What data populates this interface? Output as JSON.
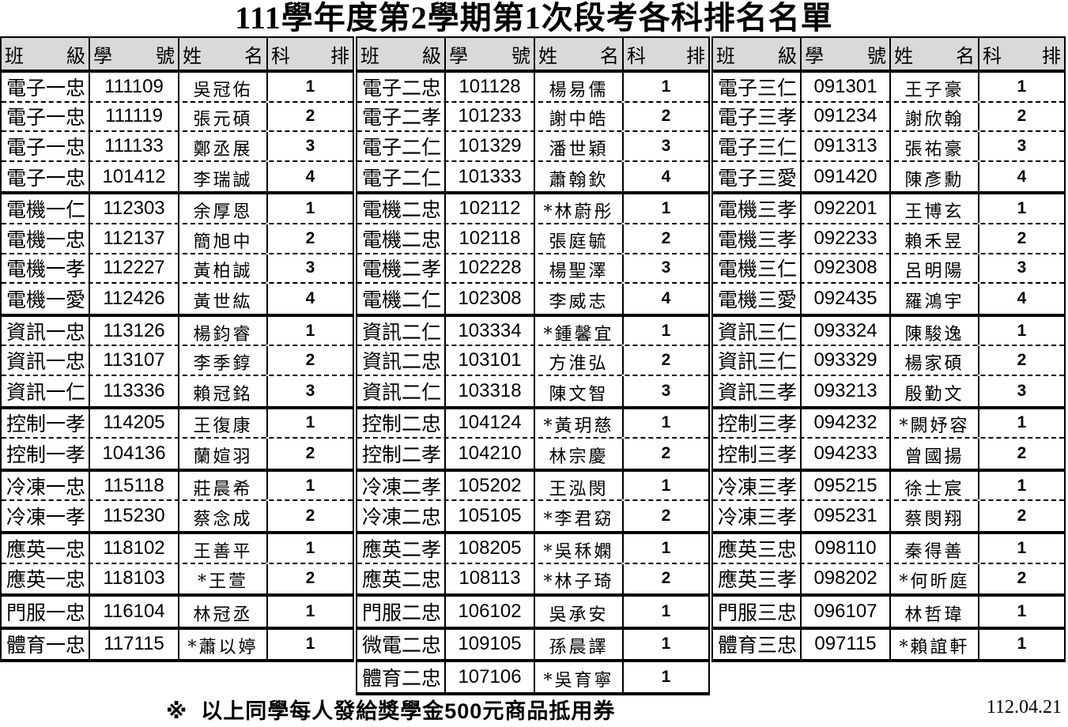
{
  "title": "111學年度第2學期第1次段考各科排名名單",
  "headers": [
    [
      "班",
      "級"
    ],
    [
      "學",
      "號"
    ],
    [
      "姓",
      "名"
    ],
    [
      "科",
      "排"
    ]
  ],
  "blocks": [
    {
      "groups": [
        [
          [
            "電子一忠",
            "111109",
            "吳冠佑",
            "1"
          ],
          [
            "電子一忠",
            "111119",
            "張元碩",
            "2"
          ],
          [
            "電子一忠",
            "111133",
            "鄭丞展",
            "3"
          ],
          [
            "電子一忠",
            "101412",
            "李瑞誠",
            "4"
          ]
        ],
        [
          [
            "電機一仁",
            "112303",
            "余厚恩",
            "1"
          ],
          [
            "電機一忠",
            "112137",
            "簡旭中",
            "2"
          ],
          [
            "電機一孝",
            "112227",
            "黃柏誠",
            "3"
          ],
          [
            "電機一愛",
            "112426",
            "黃世紘",
            "4"
          ]
        ],
        [
          [
            "資訊一忠",
            "113126",
            "楊鈞睿",
            "1"
          ],
          [
            "資訊一忠",
            "113107",
            "李季錞",
            "2"
          ],
          [
            "資訊一仁",
            "113336",
            "賴冠銘",
            "3"
          ]
        ],
        [
          [
            "控制一孝",
            "114205",
            "王復康",
            "1"
          ],
          [
            "控制一孝",
            "104136",
            "蘭媗羽",
            "2"
          ]
        ],
        [
          [
            "冷凍一忠",
            "115118",
            "莊晨希",
            "1"
          ],
          [
            "冷凍一孝",
            "115230",
            "蔡念成",
            "2"
          ]
        ],
        [
          [
            "應英一忠",
            "118102",
            "王善平",
            "1"
          ],
          [
            "應英一忠",
            "118103",
            "*王萱",
            "2"
          ]
        ],
        [
          [
            "門服一忠",
            "116104",
            "林冠丞",
            "1"
          ]
        ],
        [
          [
            "體育一忠",
            "117115",
            "*蕭以婷",
            "1"
          ]
        ]
      ]
    },
    {
      "groups": [
        [
          [
            "電子二忠",
            "101128",
            "楊易儒",
            "1"
          ],
          [
            "電子二孝",
            "101233",
            "謝中皓",
            "2"
          ],
          [
            "電子二仁",
            "101329",
            "潘世穎",
            "3"
          ],
          [
            "電子二仁",
            "101333",
            "蕭翰欽",
            "4"
          ]
        ],
        [
          [
            "電機二忠",
            "102112",
            "*林蔚彤",
            "1"
          ],
          [
            "電機二忠",
            "102118",
            "張庭毓",
            "2"
          ],
          [
            "電機二孝",
            "102228",
            "楊聖澤",
            "3"
          ],
          [
            "電機二仁",
            "102308",
            "李威志",
            "4"
          ]
        ],
        [
          [
            "資訊二仁",
            "103334",
            "*鍾馨宜",
            "1"
          ],
          [
            "資訊二忠",
            "103101",
            "方淮弘",
            "2"
          ],
          [
            "資訊二仁",
            "103318",
            "陳文智",
            "3"
          ]
        ],
        [
          [
            "控制二忠",
            "104124",
            "*黃玥慈",
            "1"
          ],
          [
            "控制二孝",
            "104210",
            "林宗慶",
            "2"
          ]
        ],
        [
          [
            "冷凍二孝",
            "105202",
            "王泓閔",
            "1"
          ],
          [
            "冷凍二忠",
            "105105",
            "*李君窈",
            "2"
          ]
        ],
        [
          [
            "應英二孝",
            "108205",
            "*吳秝嫻",
            "1"
          ],
          [
            "應英二忠",
            "108113",
            "*林子琦",
            "2"
          ]
        ],
        [
          [
            "門服二忠",
            "106102",
            "吳承安",
            "1"
          ]
        ],
        [
          [
            "微電二忠",
            "109105",
            "孫晨譯",
            "1"
          ]
        ],
        [
          [
            "體育二忠",
            "107106",
            "*吳育寧",
            "1"
          ]
        ]
      ]
    },
    {
      "groups": [
        [
          [
            "電子三仁",
            "091301",
            "王子豪",
            "1"
          ],
          [
            "電子三孝",
            "091234",
            "謝欣翰",
            "2"
          ],
          [
            "電子三仁",
            "091313",
            "張祐豪",
            "3"
          ],
          [
            "電子三愛",
            "091420",
            "陳彥勳",
            "4"
          ]
        ],
        [
          [
            "電機三孝",
            "092201",
            "王博玄",
            "1"
          ],
          [
            "電機三孝",
            "092233",
            "賴禾昱",
            "2"
          ],
          [
            "電機三仁",
            "092308",
            "呂明陽",
            "3"
          ],
          [
            "電機三愛",
            "092435",
            "羅鴻宇",
            "4"
          ]
        ],
        [
          [
            "資訊三仁",
            "093324",
            "陳駿逸",
            "1"
          ],
          [
            "資訊三仁",
            "093329",
            "楊家碩",
            "2"
          ],
          [
            "資訊三孝",
            "093213",
            "殷勤文",
            "3"
          ]
        ],
        [
          [
            "控制三孝",
            "094232",
            "*闕妤容",
            "1"
          ],
          [
            "控制三孝",
            "094233",
            "曾國揚",
            "2"
          ]
        ],
        [
          [
            "冷凍三孝",
            "095215",
            "徐士宸",
            "1"
          ],
          [
            "冷凍三孝",
            "095231",
            "蔡閔翔",
            "2"
          ]
        ],
        [
          [
            "應英三忠",
            "098110",
            "秦得善",
            "1"
          ],
          [
            "應英三孝",
            "098202",
            "*何昕庭",
            "2"
          ]
        ],
        [
          [
            "門服三忠",
            "096107",
            "林哲瑋",
            "1"
          ]
        ],
        [
          [
            "體育三忠",
            "097115",
            "*賴誼軒",
            "1"
          ]
        ]
      ]
    }
  ],
  "footer": {
    "note_symbol": "※",
    "note": "以上同學每人發給獎學金500元商品抵用券",
    "date": "112.04.21"
  }
}
